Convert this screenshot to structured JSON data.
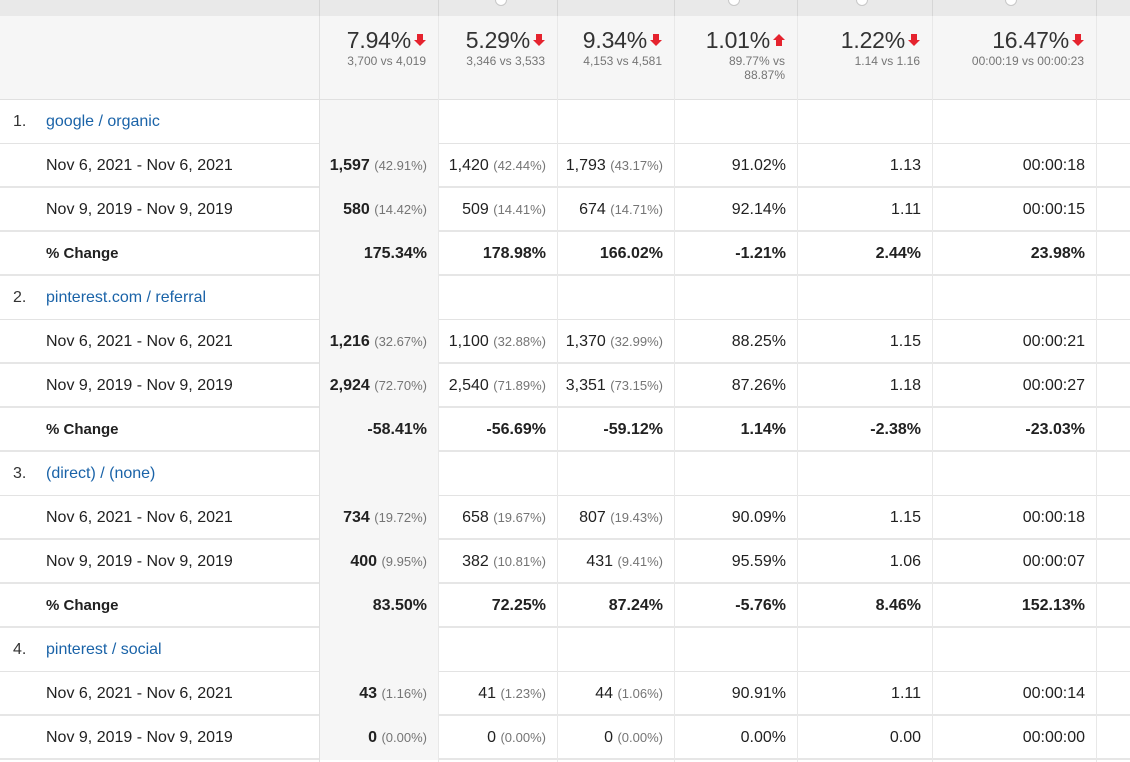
{
  "summary": [
    {
      "pct": "7.94%",
      "dir": "down",
      "sub": "3,700 vs 4,019"
    },
    {
      "pct": "5.29%",
      "dir": "down",
      "sub": "3,346 vs 3,533"
    },
    {
      "pct": "9.34%",
      "dir": "down",
      "sub": "4,153 vs 4,581"
    },
    {
      "pct": "1.01%",
      "dir": "up",
      "sub": "89.77% vs",
      "sub2": "88.87%"
    },
    {
      "pct": "1.22%",
      "dir": "down",
      "sub": "1.14 vs 1.16"
    },
    {
      "pct": "16.47%",
      "dir": "down",
      "sub": "00:00:19 vs 00:00:23"
    }
  ],
  "groups": [
    {
      "index": "1.",
      "name": "google / organic",
      "rows": [
        {
          "label": "Nov 6, 2021 - Nov 6, 2021",
          "c1": "1,597",
          "c1p": "(42.91%)",
          "c2": "1,420",
          "c2p": "(42.44%)",
          "c3": "1,793",
          "c3p": "(43.17%)",
          "c4": "91.02%",
          "c5": "1.13",
          "c6": "00:00:18"
        },
        {
          "label": "Nov 9, 2019 - Nov 9, 2019",
          "c1": "580",
          "c1p": "(14.42%)",
          "c2": "509",
          "c2p": "(14.41%)",
          "c3": "674",
          "c3p": "(14.71%)",
          "c4": "92.14%",
          "c5": "1.11",
          "c6": "00:00:15"
        },
        {
          "label": "% Change",
          "c1": "175.34%",
          "c1p": "",
          "c2": "178.98%",
          "c2p": "",
          "c3": "166.02%",
          "c3p": "",
          "c4": "-1.21%",
          "c5": "2.44%",
          "c6": "23.98%"
        }
      ]
    },
    {
      "index": "2.",
      "name": "pinterest.com / referral",
      "rows": [
        {
          "label": "Nov 6, 2021 - Nov 6, 2021",
          "c1": "1,216",
          "c1p": "(32.67%)",
          "c2": "1,100",
          "c2p": "(32.88%)",
          "c3": "1,370",
          "c3p": "(32.99%)",
          "c4": "88.25%",
          "c5": "1.15",
          "c6": "00:00:21"
        },
        {
          "label": "Nov 9, 2019 - Nov 9, 2019",
          "c1": "2,924",
          "c1p": "(72.70%)",
          "c2": "2,540",
          "c2p": "(71.89%)",
          "c3": "3,351",
          "c3p": "(73.15%)",
          "c4": "87.26%",
          "c5": "1.18",
          "c6": "00:00:27"
        },
        {
          "label": "% Change",
          "c1": "-58.41%",
          "c1p": "",
          "c2": "-56.69%",
          "c2p": "",
          "c3": "-59.12%",
          "c3p": "",
          "c4": "1.14%",
          "c5": "-2.38%",
          "c6": "-23.03%"
        }
      ]
    },
    {
      "index": "3.",
      "name": "(direct) / (none)",
      "rows": [
        {
          "label": "Nov 6, 2021 - Nov 6, 2021",
          "c1": "734",
          "c1p": "(19.72%)",
          "c2": "658",
          "c2p": "(19.67%)",
          "c3": "807",
          "c3p": "(19.43%)",
          "c4": "90.09%",
          "c5": "1.15",
          "c6": "00:00:18"
        },
        {
          "label": "Nov 9, 2019 - Nov 9, 2019",
          "c1": "400",
          "c1p": "(9.95%)",
          "c2": "382",
          "c2p": "(10.81%)",
          "c3": "431",
          "c3p": "(9.41%)",
          "c4": "95.59%",
          "c5": "1.06",
          "c6": "00:00:07"
        },
        {
          "label": "% Change",
          "c1": "83.50%",
          "c1p": "",
          "c2": "72.25%",
          "c2p": "",
          "c3": "87.24%",
          "c3p": "",
          "c4": "-5.76%",
          "c5": "8.46%",
          "c6": "152.13%"
        }
      ]
    },
    {
      "index": "4.",
      "name": "pinterest / social",
      "rows": [
        {
          "label": "Nov 6, 2021 - Nov 6, 2021",
          "c1": "43",
          "c1p": "(1.16%)",
          "c2": "41",
          "c2p": "(1.23%)",
          "c3": "44",
          "c3p": "(1.06%)",
          "c4": "90.91%",
          "c5": "1.11",
          "c6": "00:00:14"
        },
        {
          "label": "Nov 9, 2019 - Nov 9, 2019",
          "c1": "0",
          "c1p": "(0.00%)",
          "c2": "0",
          "c2p": "(0.00%)",
          "c3": "0",
          "c3p": "(0.00%)",
          "c4": "0.00%",
          "c5": "0.00",
          "c6": "00:00:00"
        }
      ]
    }
  ]
}
